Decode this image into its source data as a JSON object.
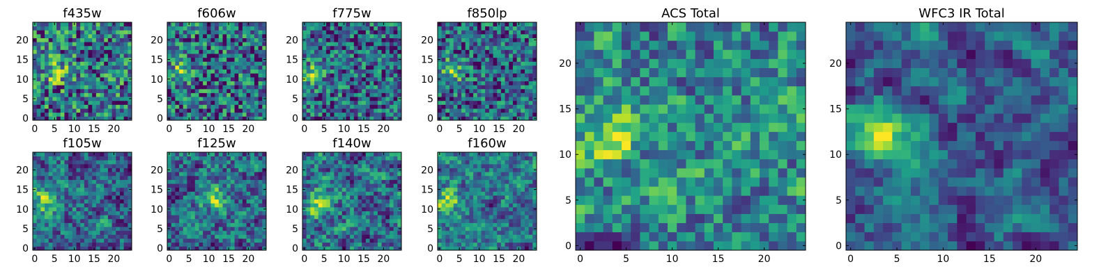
{
  "chart_data": {
    "type": "heatmap",
    "colormap": "viridis",
    "panels": [
      {
        "title": "f435w",
        "grid_size": 25,
        "xticks": [
          0,
          5,
          10,
          15,
          20
        ],
        "yticks": [
          0,
          5,
          10,
          15,
          20
        ],
        "xlim": [
          0,
          25
        ],
        "ylim": [
          0,
          25
        ],
        "seed": 11,
        "smooth": 0,
        "hotspot": [
          5,
          12
        ],
        "value_range": [
          0,
          1
        ]
      },
      {
        "title": "f606w",
        "grid_size": 25,
        "xticks": [
          0,
          5,
          10,
          15,
          20
        ],
        "yticks": [
          0,
          5,
          10,
          15,
          20
        ],
        "xlim": [
          0,
          25
        ],
        "ylim": [
          0,
          25
        ],
        "seed": 23,
        "smooth": 0,
        "hotspot": [
          3,
          12
        ],
        "value_range": [
          0,
          1
        ]
      },
      {
        "title": "f775w",
        "grid_size": 25,
        "xticks": [
          0,
          5,
          10,
          15,
          20
        ],
        "yticks": [
          0,
          5,
          10,
          15,
          20
        ],
        "xlim": [
          0,
          25
        ],
        "ylim": [
          0,
          25
        ],
        "seed": 37,
        "smooth": 0,
        "hotspot": [
          2,
          11
        ],
        "value_range": [
          0,
          1
        ]
      },
      {
        "title": "f850lp",
        "grid_size": 25,
        "xticks": [
          0,
          5,
          10,
          15,
          20
        ],
        "yticks": [
          0,
          5,
          10,
          15,
          20
        ],
        "xlim": [
          0,
          25
        ],
        "ylim": [
          0,
          25
        ],
        "seed": 41,
        "smooth": 0,
        "hotspot": [
          3,
          12
        ],
        "value_range": [
          0,
          1
        ]
      },
      {
        "title": "f105w",
        "grid_size": 25,
        "xticks": [
          0,
          5,
          10,
          15,
          20
        ],
        "yticks": [
          0,
          5,
          10,
          15,
          20
        ],
        "xlim": [
          0,
          25
        ],
        "ylim": [
          0,
          25
        ],
        "seed": 53,
        "smooth": 1,
        "hotspot": [
          2,
          12
        ],
        "value_range": [
          0,
          1
        ]
      },
      {
        "title": "f125w",
        "grid_size": 25,
        "xticks": [
          0,
          5,
          10,
          15,
          20
        ],
        "yticks": [
          0,
          5,
          10,
          15,
          20
        ],
        "xlim": [
          0,
          25
        ],
        "ylim": [
          0,
          25
        ],
        "seed": 67,
        "smooth": 1,
        "hotspot": [
          11,
          13
        ],
        "value_range": [
          0,
          1
        ]
      },
      {
        "title": "f140w",
        "grid_size": 25,
        "xticks": [
          0,
          5,
          10,
          15,
          20
        ],
        "yticks": [
          0,
          5,
          10,
          15,
          20
        ],
        "xlim": [
          0,
          25
        ],
        "ylim": [
          0,
          25
        ],
        "seed": 71,
        "smooth": 1,
        "hotspot": [
          4,
          11
        ],
        "value_range": [
          0,
          1
        ]
      },
      {
        "title": "f160w",
        "grid_size": 25,
        "xticks": [
          0,
          5,
          10,
          15,
          20
        ],
        "yticks": [
          0,
          5,
          10,
          15,
          20
        ],
        "xlim": [
          0,
          25
        ],
        "ylim": [
          0,
          25
        ],
        "seed": 83,
        "smooth": 1,
        "hotspot": [
          2,
          12
        ],
        "value_range": [
          0,
          1
        ]
      },
      {
        "title": "ACS Total",
        "grid_size": 25,
        "xticks": [
          0,
          5,
          10,
          15,
          20
        ],
        "yticks": [
          0,
          5,
          10,
          15,
          20
        ],
        "xlim": [
          0,
          25
        ],
        "ylim": [
          0,
          25
        ],
        "seed": 97,
        "smooth": 1,
        "hotspot": [
          3,
          12
        ],
        "value_range": [
          0,
          1
        ]
      },
      {
        "title": "WFC3 IR Total",
        "grid_size": 25,
        "xticks": [
          0,
          5,
          10,
          15,
          20
        ],
        "yticks": [
          0,
          5,
          10,
          15,
          20
        ],
        "xlim": [
          0,
          25
        ],
        "ylim": [
          0,
          25
        ],
        "seed": 101,
        "smooth": 2,
        "hotspot": [
          3,
          12
        ],
        "value_range": [
          0,
          1
        ]
      }
    ]
  }
}
